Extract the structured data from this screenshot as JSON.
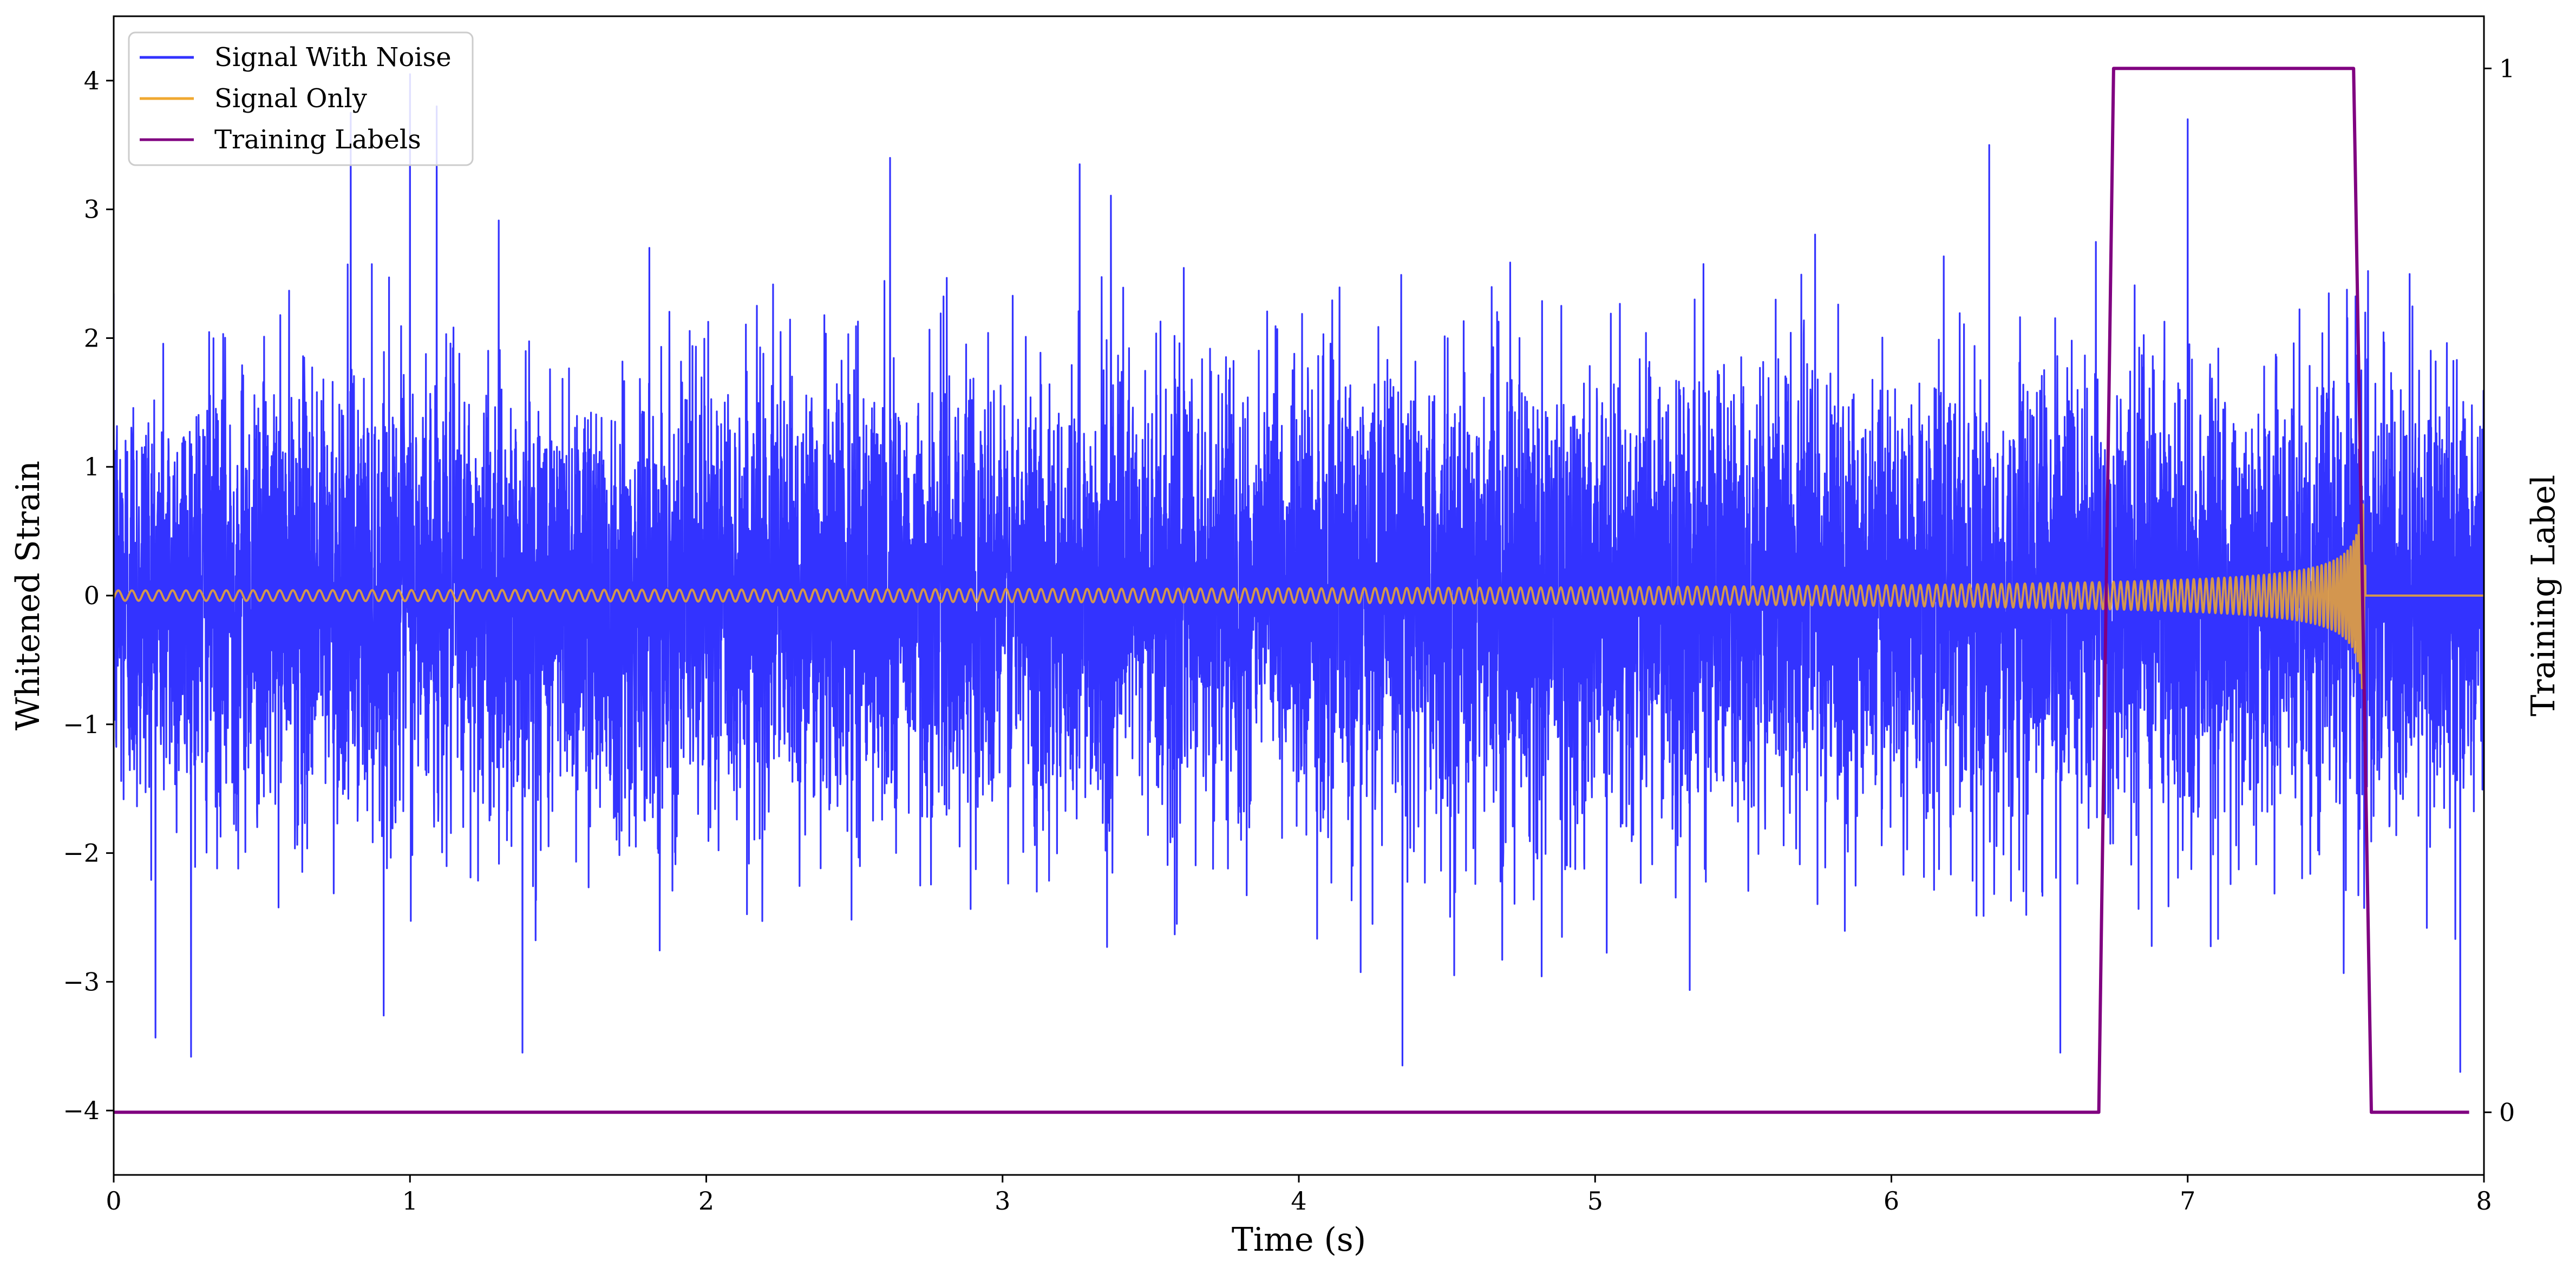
{
  "chart_data": {
    "type": "line",
    "xlabel": "Time (s)",
    "ylabel": "Whitened Strain",
    "y2label": "Training Label",
    "xlim": [
      0,
      8
    ],
    "ylim": [
      -4.5,
      4.5
    ],
    "y2lim": [
      -0.06,
      1.05
    ],
    "xticks": [
      "0",
      "1",
      "2",
      "3",
      "4",
      "5",
      "6",
      "7",
      "8"
    ],
    "xtick_values": [
      0,
      1,
      2,
      3,
      4,
      5,
      6,
      7,
      8
    ],
    "yticks": [
      "−4",
      "−3",
      "−2",
      "−1",
      "0",
      "1",
      "2",
      "3",
      "4"
    ],
    "ytick_values": [
      -4,
      -3,
      -2,
      -1,
      0,
      1,
      2,
      3,
      4
    ],
    "y2ticks": [
      "0",
      "1"
    ],
    "y2tick_values": [
      0,
      1
    ],
    "legend_position": "top-left",
    "series": [
      {
        "name": "Signal With Noise",
        "color": "#3333ff",
        "axis": "left",
        "description_values": {
          "noise_std": 0.85,
          "peaks": [
            [
              1.0,
              4.05
            ],
            [
              1.09,
              3.8
            ],
            [
              0.8,
              3.75
            ],
            [
              2.62,
              3.4
            ],
            [
              3.26,
              3.35
            ],
            [
              7.0,
              3.7
            ],
            [
              6.33,
              3.5
            ],
            [
              1.38,
              -3.55
            ],
            [
              4.35,
              -3.65
            ],
            [
              6.57,
              -3.55
            ],
            [
              7.92,
              -3.7
            ]
          ]
        }
      },
      {
        "name": "Signal Only",
        "color": "#f0a830",
        "axis": "left",
        "description_values": {
          "merger_time": 7.6,
          "start_amplitude": 0.04,
          "peak_amplitude": 0.72
        }
      },
      {
        "name": "Training Labels",
        "color": "#800080",
        "axis": "right",
        "x": [
          0,
          6.7,
          6.75,
          7.56,
          7.62,
          7.95
        ],
        "values": [
          0,
          0,
          1,
          1,
          0,
          0
        ]
      }
    ]
  }
}
